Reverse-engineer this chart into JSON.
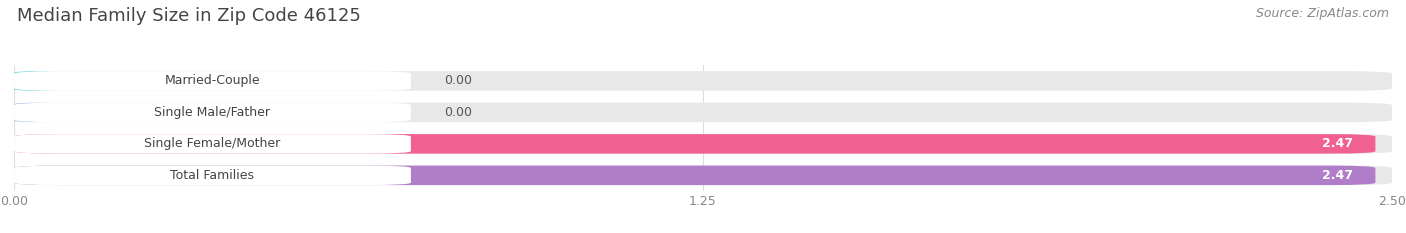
{
  "title": "Median Family Size in Zip Code 46125",
  "source": "Source: ZipAtlas.com",
  "categories": [
    "Married-Couple",
    "Single Male/Father",
    "Single Female/Mother",
    "Total Families"
  ],
  "values": [
    0.0,
    0.0,
    2.47,
    2.47
  ],
  "bar_colors": [
    "#5ecfda",
    "#a8bce8",
    "#f06090",
    "#b07ec8"
  ],
  "value_label_colors": [
    "#555555",
    "#555555",
    "#ffffff",
    "#ffffff"
  ],
  "xlim": [
    0,
    2.5
  ],
  "xticks": [
    0.0,
    1.25,
    2.5
  ],
  "xtick_labels": [
    "0.00",
    "1.25",
    "2.50"
  ],
  "background_color": "#ffffff",
  "bar_bg_color": "#e8e8e8",
  "title_fontsize": 13,
  "source_fontsize": 9,
  "label_fontsize": 9,
  "value_fontsize": 9,
  "tick_fontsize": 9,
  "bar_height": 0.62,
  "rounding_size": 0.08
}
